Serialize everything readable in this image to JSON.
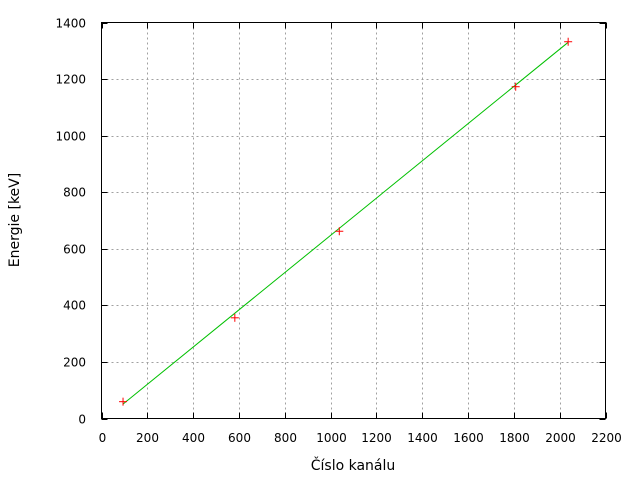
{
  "chart_data": {
    "type": "scatter",
    "title": "",
    "xlabel": "Číslo kanálu",
    "ylabel": "Energie [keV]",
    "xlim": [
      0,
      2200
    ],
    "ylim": [
      0,
      1400
    ],
    "xticks": [
      0,
      200,
      400,
      600,
      800,
      1000,
      1200,
      1400,
      1600,
      1800,
      2000,
      2200
    ],
    "yticks": [
      0,
      200,
      400,
      600,
      800,
      1000,
      1200,
      1400
    ],
    "grid": true,
    "series": [
      {
        "kind": "points",
        "marker": "plus",
        "color": "#ff0000",
        "x": [
          94,
          582,
          1038,
          1808,
          2037
        ],
        "y": [
          59.5,
          356,
          662,
          1173,
          1332
        ]
      },
      {
        "kind": "fit-line",
        "color": "#00c000",
        "x": [
          94,
          2037
        ],
        "y": [
          51,
          1330
        ]
      }
    ]
  }
}
